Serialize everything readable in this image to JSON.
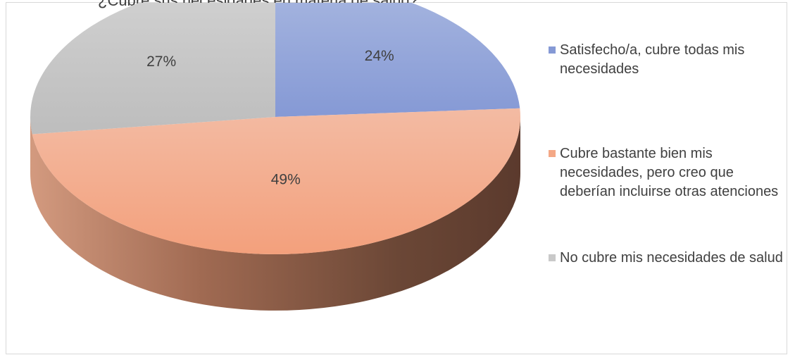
{
  "chart_data": {
    "type": "pie",
    "title": "¿Cubre sus necesidades en materia de salud?",
    "slices": [
      {
        "label": "Satisfecho/a, cubre todas mis necesidades",
        "value": 24,
        "display": "24%",
        "color": "#8ea3d9"
      },
      {
        "label": "Cubre bastante bien mis necesidades, pero creo que deberían incluirse otras atenciones",
        "value": 49,
        "display": "49%",
        "color": "#f4a886"
      },
      {
        "label": "No cubre mis necesidades de salud",
        "value": 27,
        "display": "27%",
        "color": "#c9c9c9"
      }
    ],
    "legend_position": "right",
    "style": "3d-pie"
  }
}
